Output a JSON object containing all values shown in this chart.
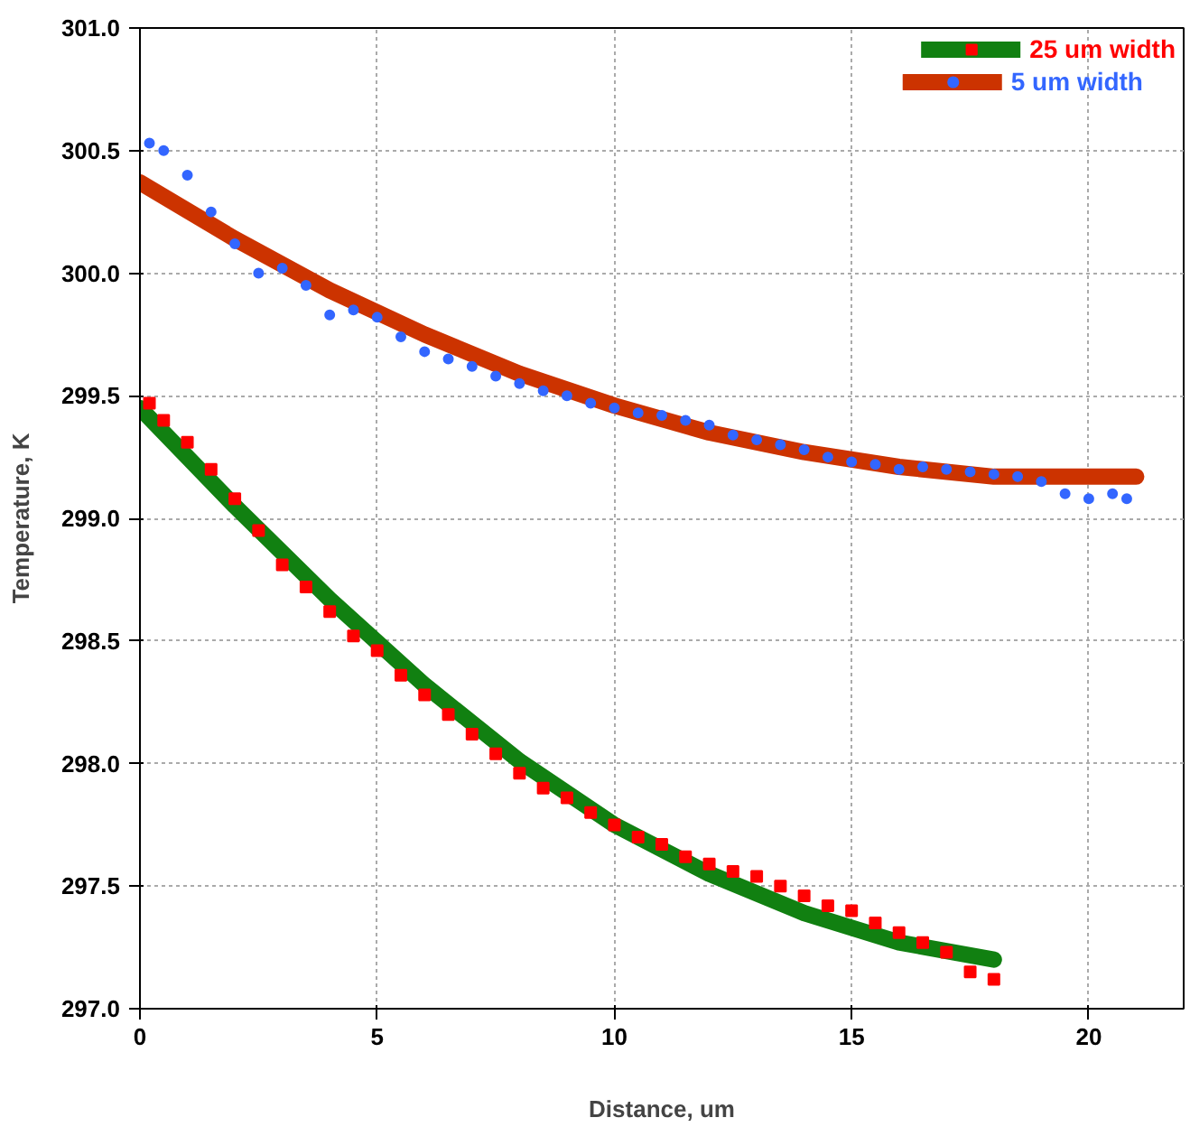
{
  "chart_data": {
    "type": "scatter",
    "xlabel": "Distance, um",
    "ylabel": "Temperature, K",
    "xlim": [
      0,
      22
    ],
    "ylim": [
      297,
      301
    ],
    "xticks": [
      0,
      5,
      10,
      15,
      20
    ],
    "yticks": [
      {
        "value": 297,
        "label": "297.0"
      },
      {
        "value": 297.5,
        "label": "297.5"
      },
      {
        "value": 298,
        "label": "298.0"
      },
      {
        "value": 298.5,
        "label": "298.5"
      },
      {
        "value": 299,
        "label": "299.0"
      },
      {
        "value": 299.5,
        "label": "299.5"
      },
      {
        "value": 300,
        "label": "300.0"
      },
      {
        "value": 300.5,
        "label": "300.5"
      },
      {
        "value": 301,
        "label": "301.0"
      }
    ],
    "grid": true,
    "legend": "top right",
    "series": [
      {
        "type": "line",
        "color": "#118011",
        "x": [
          0,
          2,
          4,
          6,
          8,
          10,
          12,
          14,
          16,
          18
        ],
        "values": [
          299.45,
          299.05,
          298.67,
          298.32,
          298.01,
          297.75,
          297.55,
          297.39,
          297.27,
          297.2
        ]
      },
      {
        "name": "25 um width",
        "color": "#ff0000",
        "marker": "square",
        "x": [
          0.2,
          0.5,
          1,
          1.5,
          2,
          2.5,
          3,
          3.5,
          4,
          4.5,
          5,
          5.5,
          6,
          6.5,
          7,
          7.5,
          8,
          8.5,
          9,
          9.5,
          10,
          10.5,
          11,
          11.5,
          12,
          12.5,
          13,
          13.5,
          14,
          14.5,
          15,
          15.5,
          16,
          16.5,
          17,
          17.5,
          18
        ],
        "values": [
          299.47,
          299.4,
          299.31,
          299.2,
          299.08,
          298.95,
          298.81,
          298.72,
          298.62,
          298.52,
          298.46,
          298.36,
          298.28,
          298.2,
          298.12,
          298.04,
          297.96,
          297.9,
          297.86,
          297.8,
          297.75,
          297.7,
          297.67,
          297.62,
          297.59,
          297.56,
          297.54,
          297.5,
          297.46,
          297.42,
          297.4,
          297.35,
          297.31,
          297.27,
          297.23,
          297.15,
          297.12
        ]
      },
      {
        "type": "line",
        "color": "#cc3300",
        "x": [
          0,
          2,
          4,
          6,
          8,
          10,
          12,
          14,
          16,
          18,
          21
        ],
        "values": [
          300.37,
          300.14,
          299.93,
          299.75,
          299.59,
          299.46,
          299.35,
          299.27,
          299.21,
          299.17,
          299.17
        ]
      },
      {
        "name": "5 um width",
        "color": "#3366ff",
        "marker": "circle",
        "x": [
          0.2,
          0.5,
          1,
          1.5,
          2,
          2.5,
          3,
          3.5,
          4,
          4.5,
          5,
          5.5,
          6,
          6.5,
          7,
          7.5,
          8,
          8.5,
          9,
          9.5,
          10,
          10.5,
          11,
          11.5,
          12,
          12.5,
          13,
          13.5,
          14,
          14.5,
          15,
          15.5,
          16,
          16.5,
          17,
          17.5,
          18,
          18.5,
          19,
          19.5,
          20,
          20.5,
          20.8
        ],
        "values": [
          300.53,
          300.5,
          300.4,
          300.25,
          300.12,
          300.0,
          300.02,
          299.95,
          299.83,
          299.85,
          299.82,
          299.74,
          299.68,
          299.65,
          299.62,
          299.58,
          299.55,
          299.52,
          299.5,
          299.47,
          299.45,
          299.43,
          299.42,
          299.4,
          299.38,
          299.34,
          299.32,
          299.3,
          299.28,
          299.25,
          299.23,
          299.22,
          299.2,
          299.21,
          299.2,
          299.19,
          299.18,
          299.17,
          299.15,
          299.1,
          299.08,
          299.1,
          299.08
        ]
      }
    ]
  }
}
